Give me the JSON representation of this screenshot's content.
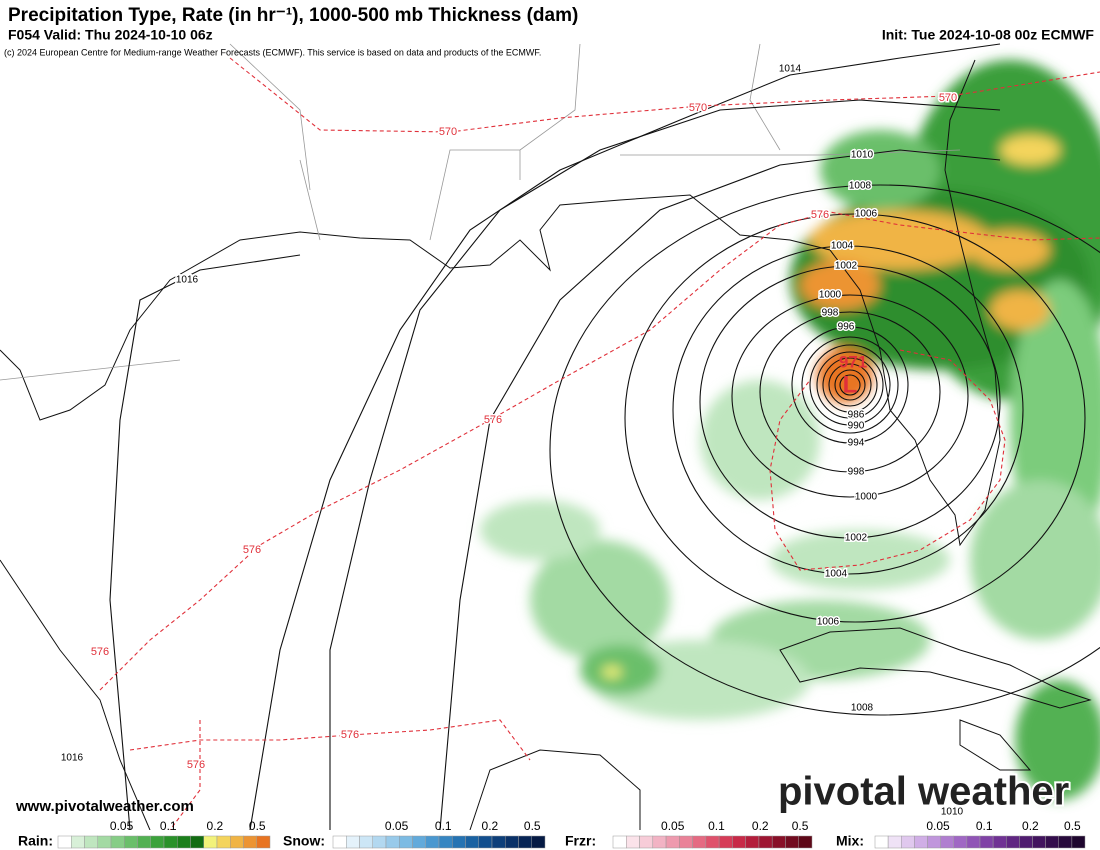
{
  "header": {
    "title": "Precipitation Type, Rate (in hr⁻¹), 1000-500 mb Thickness (dam)",
    "valid": "F054 Valid: Thu 2024-10-10 06z",
    "init": "Init: Tue 2024-10-08 00z ECMWF",
    "copyright": "(c) 2024 European Centre for Medium-range Weather Forecasts (ECMWF). This service is based on data and products of the ECMWF."
  },
  "isobar_labels": [
    "1014",
    "1016",
    "1010",
    "1008",
    "1006",
    "1004",
    "1002",
    "1000",
    "998",
    "996",
    "986",
    "990",
    "994",
    "998",
    "1000",
    "1002",
    "1004",
    "1006",
    "1008",
    "1010",
    "1016"
  ],
  "center": {
    "pressure": "971",
    "symbol": "L"
  },
  "thickness_labels": [
    "570",
    "570",
    "570",
    "576",
    "576",
    "576",
    "576",
    "576",
    "576"
  ],
  "footer": {
    "website": "www.pivotalweather.com",
    "logo": "pivotal weather"
  },
  "legends": [
    {
      "label": "Rain:",
      "ticks": [
        "0.05",
        "0.1",
        "0.2",
        "0.5"
      ],
      "colors": [
        "#ffffff",
        "#d8f0d8",
        "#bfe6bf",
        "#a3daa3",
        "#86cd86",
        "#6abf6a",
        "#52b152",
        "#3ca23c",
        "#2a922a",
        "#1b7f1b",
        "#126c12",
        "#f2f27a",
        "#f4d45c",
        "#f0b445",
        "#ec9433",
        "#e87422"
      ]
    },
    {
      "label": "Snow:",
      "ticks": [
        "0.05",
        "0.1",
        "0.2",
        "0.5"
      ],
      "colors": [
        "#ffffff",
        "#e4f2fb",
        "#cce6f6",
        "#b2d8f0",
        "#98caea",
        "#7cbbe3",
        "#62aadb",
        "#4a98d0",
        "#3686c2",
        "#2573b3",
        "#1a62a2",
        "#124f8e",
        "#0e3f7a",
        "#0a3168",
        "#072556",
        "#051a44"
      ]
    },
    {
      "label": "Frzr:",
      "ticks": [
        "0.05",
        "0.1",
        "0.2",
        "0.5"
      ],
      "colors": [
        "#ffffff",
        "#fbe3ea",
        "#f7ccd8",
        "#f2b3c4",
        "#ee9aae",
        "#ea8298",
        "#e56a82",
        "#df526c",
        "#d63c58",
        "#c82a48",
        "#b41e3c",
        "#9e1632",
        "#881028",
        "#720c20",
        "#5e0818"
      ]
    },
    {
      "label": "Mix:",
      "ticks": [
        "0.05",
        "0.1",
        "0.2",
        "0.5"
      ],
      "colors": [
        "#ffffff",
        "#efe2f6",
        "#e0c8ee",
        "#d0aee6",
        "#c096dc",
        "#b07ed0",
        "#a068c4",
        "#9054b6",
        "#8042a6",
        "#703294",
        "#602682",
        "#501c70",
        "#42145e",
        "#340e4c",
        "#280a3c",
        "#1e062e"
      ]
    }
  ]
}
